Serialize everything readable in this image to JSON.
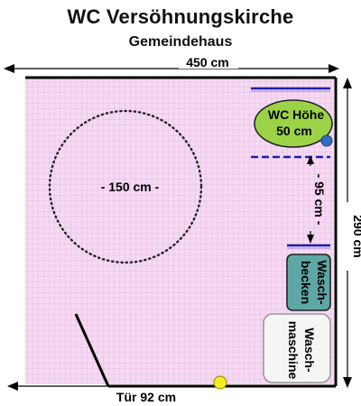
{
  "header": {
    "title": "WC Versöhnungskirche",
    "subtitle": "Gemeindehaus"
  },
  "dimensions": {
    "width_label": "450 cm",
    "height_label": "290 cm",
    "door_label": "Tür 92 cm",
    "turning_circle_label": "- 150 cm -",
    "clearance_label": "- 95 cm -"
  },
  "fixtures": {
    "wc_line1": "WC Höhe",
    "wc_line2": "50 cm",
    "basin_line1": "Wasch-",
    "basin_line2": "becken",
    "washer_line1": "Wasch-",
    "washer_line2": "maschine"
  },
  "colors": {
    "floor": "#f6d9f2",
    "grid": "#d99ad3",
    "wc": "#9cd246",
    "basin": "#5ea7a5",
    "washer": "#f5f5f5",
    "arrow": "#1e1eaa",
    "button_blue": "#2f6fc2",
    "button_yellow": "#f4ee1e"
  }
}
